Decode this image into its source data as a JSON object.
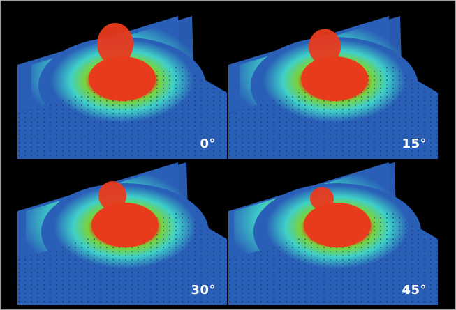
{
  "panels": [
    {
      "label": "0°"
    },
    {
      "label": "15°"
    },
    {
      "label": "30°"
    },
    {
      "label": "45°"
    }
  ],
  "colors": {
    "background": "#000000",
    "field_low": "#2a5fb8",
    "field_mid": "#3fd0c8",
    "field_high_green": "#7ad23a",
    "field_peak": "#e83a1c",
    "border": "#9a9a9a"
  }
}
